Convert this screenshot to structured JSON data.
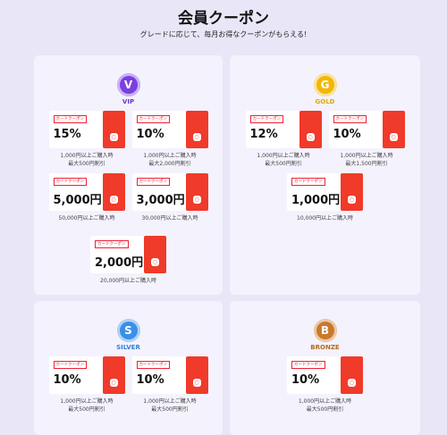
{
  "header": {
    "title": "会員クーポン",
    "subtitle": "グレードに応じて、毎月お得なクーポンがもらえる!"
  },
  "panels": [
    {
      "icon": "V",
      "name": "VIP",
      "rows": [
        [
          {
            "tag": "カードクーポン",
            "amount": "15%",
            "conditions": [
              "1,000円以上ご購入時",
              "最大500円割引"
            ]
          },
          {
            "tag": "カードクーポン",
            "amount": "10%",
            "conditions": [
              "1,000円以上ご購入時",
              "最大2,000円割引"
            ]
          }
        ],
        [
          {
            "tag": "カードクーポン",
            "amount": "5,000円",
            "conditions": [
              "50,000円以上ご購入時"
            ]
          },
          {
            "tag": "カードクーポン",
            "amount": "3,000円",
            "conditions": [
              "30,000円以上ご購入時"
            ]
          }
        ],
        [
          {
            "tag": "カードクーポン",
            "amount": "2,000円",
            "conditions": [
              "20,000円以上ご購入時"
            ]
          }
        ]
      ]
    },
    {
      "icon": "G",
      "name": "GOLD",
      "rows": [
        [
          {
            "tag": "カードクーポン",
            "amount": "12%",
            "conditions": [
              "1,000円以上ご購入時",
              "最大500円割引"
            ]
          },
          {
            "tag": "カードクーポン",
            "amount": "10%",
            "conditions": [
              "1,000円以上ご購入時",
              "最大1,500円割引"
            ]
          }
        ],
        [
          {
            "tag": "カードクーポン",
            "amount": "1,000円",
            "conditions": [
              "10,000円以上ご購入時"
            ]
          }
        ]
      ]
    },
    {
      "icon": "S",
      "name": "SILVER",
      "rows": [
        [
          {
            "tag": "カードクーポン",
            "amount": "10%",
            "conditions": [
              "1,000円以上ご購入時",
              "最大500円割引"
            ]
          },
          {
            "tag": "カードクーポン",
            "amount": "10%",
            "conditions": [
              "1,000円以上ご購入時",
              "最大500円割引"
            ]
          }
        ]
      ]
    },
    {
      "icon": "B",
      "name": "BRONZE",
      "rows": [
        [
          {
            "tag": "カードクーポン",
            "amount": "10%",
            "conditions": [
              "1,000円以上ご購入時",
              "最大500円割引"
            ]
          }
        ]
      ]
    }
  ]
}
